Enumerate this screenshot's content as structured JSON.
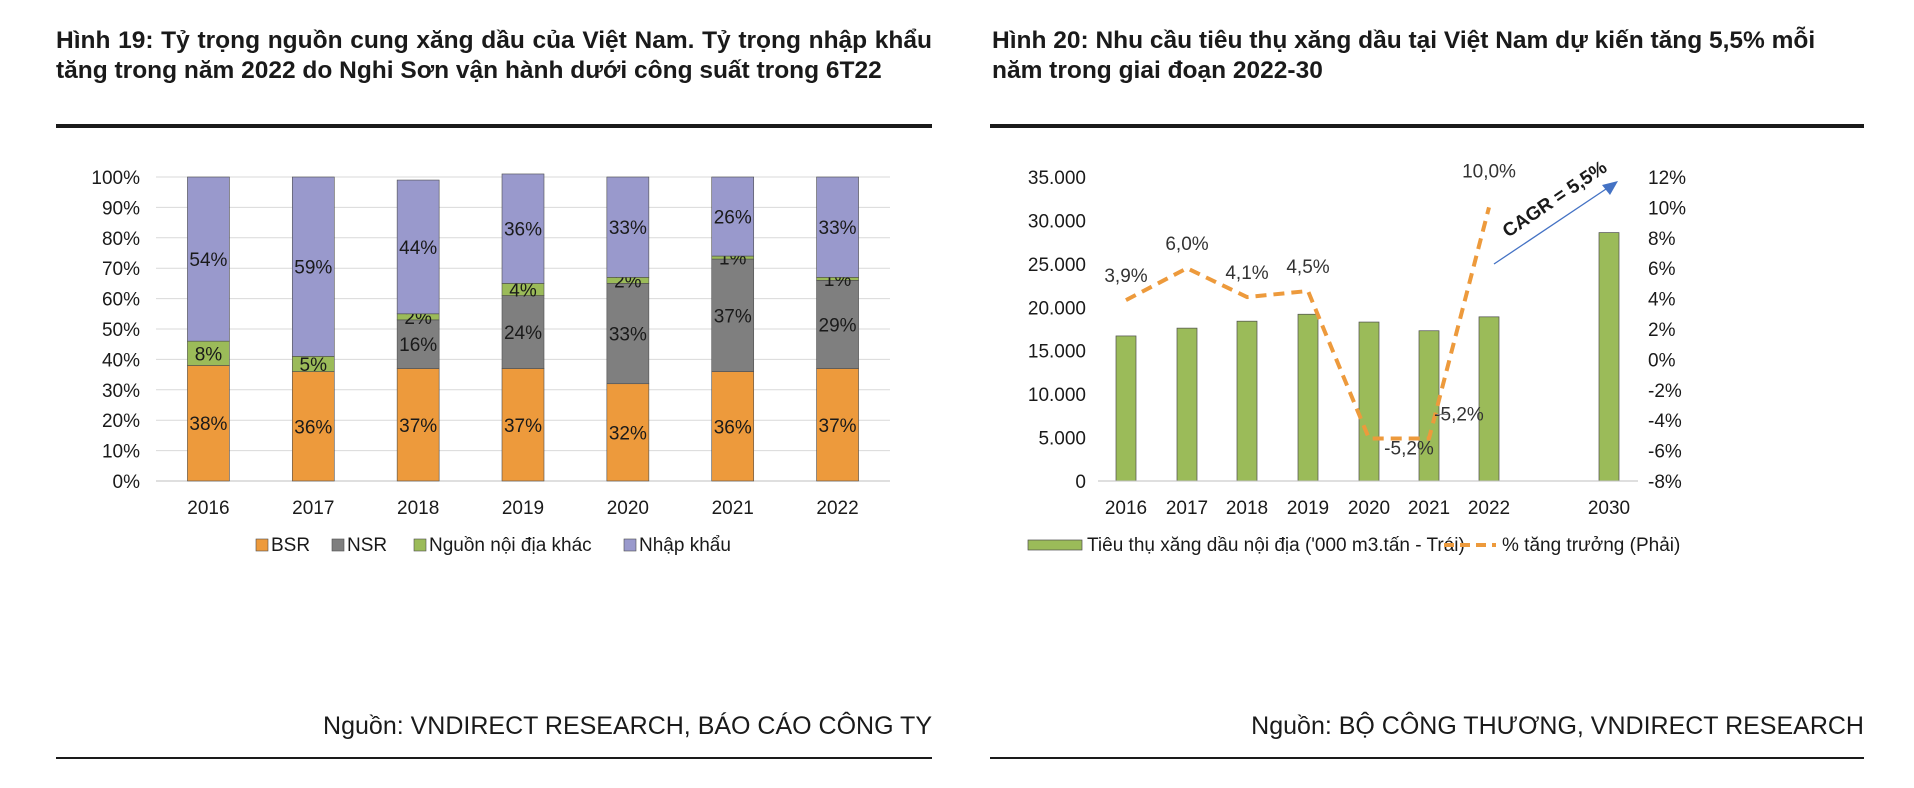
{
  "left": {
    "title": "Hình 19: Tỷ trọng nguồn cung xăng dầu của Việt Nam. Tỷ trọng nhập khẩu tăng trong năm 2022 do Nghi Sơn vận hành dưới công suất trong 6T22",
    "source": "Nguồn: VNDIRECT RESEARCH, BÁO CÁO CÔNG TY"
  },
  "right": {
    "title": "Hình 20: Nhu cầu tiêu thụ xăng dầu tại Việt Nam dự kiến tăng 5,5% mỗi năm trong giai đoạn 2022-30",
    "source": "Nguồn: BỘ CÔNG THƯƠNG, VNDIRECT RESEARCH"
  },
  "chart_data": [
    {
      "type": "bar",
      "stacked": true,
      "percent": true,
      "categories": [
        "2016",
        "2017",
        "2018",
        "2019",
        "2020",
        "2021",
        "2022"
      ],
      "y_ticks": [
        "0%",
        "10%",
        "20%",
        "30%",
        "40%",
        "50%",
        "60%",
        "70%",
        "80%",
        "90%",
        "100%"
      ],
      "ylim": [
        0,
        100
      ],
      "grid": true,
      "legend_position": "bottom",
      "series": [
        {
          "name": "BSR",
          "color": "#ED9A3C",
          "values": [
            38,
            36,
            37,
            37,
            32,
            36,
            37
          ],
          "labels": [
            "38%",
            "36%",
            "37%",
            "37%",
            "32%",
            "36%",
            "37%"
          ]
        },
        {
          "name": "NSR",
          "color": "#7F7F7F",
          "values": [
            0,
            0,
            16,
            24,
            33,
            37,
            29
          ],
          "labels": [
            "",
            "",
            "16%",
            "24%",
            "33%",
            "37%",
            "29%"
          ]
        },
        {
          "name": "Nguồn nội địa khác",
          "color": "#9BBB59",
          "values": [
            8,
            5,
            2,
            4,
            2,
            1,
            1
          ],
          "labels": [
            "8%",
            "5%",
            "2%",
            "4%",
            "2%",
            "1%",
            "1%"
          ]
        },
        {
          "name": "Nhập khẩu",
          "color": "#9999CC",
          "values": [
            54,
            59,
            44,
            36,
            33,
            26,
            33
          ],
          "labels": [
            "54%",
            "59%",
            "44%",
            "36%",
            "33%",
            "26%",
            "33%"
          ]
        }
      ]
    },
    {
      "type": "bar+line",
      "categories": [
        "2016",
        "2017",
        "2018",
        "2019",
        "2020",
        "2021",
        "2022",
        "2030"
      ],
      "y_left_ticks": [
        "0",
        "5.000",
        "10.000",
        "15.000",
        "20.000",
        "25.000",
        "30.000",
        "35.000"
      ],
      "y_left_range": [
        0,
        35000
      ],
      "y_right_ticks": [
        "-8%",
        "-6%",
        "-4%",
        "-2%",
        "0%",
        "2%",
        "4%",
        "6%",
        "8%",
        "10%",
        "12%"
      ],
      "y_right_range": [
        -8,
        12
      ],
      "legend_position": "bottom",
      "series": [
        {
          "name": "Tiêu thụ xăng dầu nội địa ('000 m3.tấn - Trái)",
          "type": "bar",
          "axis": "left",
          "color": "#9BBB59",
          "values": [
            16700,
            17600,
            18400,
            19200,
            18300,
            17300,
            18900,
            28600
          ]
        },
        {
          "name": "% tăng trưởng (Phải)",
          "type": "line",
          "axis": "right",
          "style": "dashed",
          "color": "#ED9A3C",
          "values": [
            3.9,
            6.0,
            4.1,
            4.5,
            -5.2,
            -5.2,
            10.0,
            null
          ],
          "labels": [
            "3,9%",
            "6,0%",
            "4,1%",
            "4,5%",
            "-5,2%",
            "-5,2%",
            "10,0%",
            ""
          ]
        }
      ],
      "annotation": {
        "text": "CAGR = 5,5%",
        "arrow_color": "#4472C4"
      }
    }
  ]
}
